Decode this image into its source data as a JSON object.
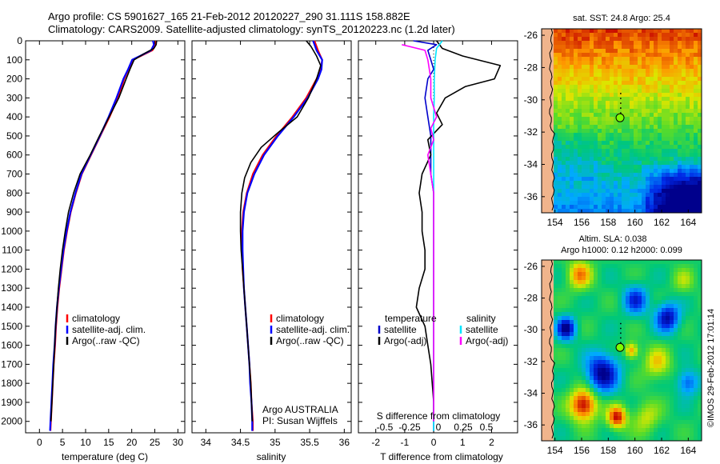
{
  "header": {
    "line1": "Argo profile: CS 5901627_165 21-Feb-2012 20120227_290 31.111S 158.882E",
    "line2": "Climatology: CARS2009. Satellite-adjusted climatology: synTS_20120223.nc (1.2d later)"
  },
  "colors": {
    "climatology": "#ff0000",
    "satellite": "#0000ff",
    "argo": "#000000",
    "temp_satellite_diff": "#0000cc",
    "sal_satellite_diff": "#00e5ff",
    "sal_argo_diff": "#ff00ff",
    "land": "#f0b48c"
  },
  "depth_axis": {
    "ticks": [
      "0",
      "100",
      "200",
      "300",
      "400",
      "500",
      "600",
      "700",
      "800",
      "900",
      "1000",
      "1100",
      "1200",
      "1300",
      "1400",
      "1500",
      "1600",
      "1700",
      "1800",
      "1900",
      "2000"
    ]
  },
  "temp_panel": {
    "xlabel": "temperature (deg C)",
    "xticks": [
      "0",
      "5",
      "10",
      "15",
      "20",
      "25",
      "30"
    ],
    "legend": [
      "climatology",
      "satellite-adj. clim.",
      "Argo(..raw -QC)"
    ]
  },
  "sal_panel": {
    "xlabel": "salinity",
    "xticks": [
      "34",
      "34.5",
      "35",
      "35.5",
      "36"
    ],
    "legend": [
      "climatology",
      "satellite-adj. clim.",
      "Argo(..raw -QC)"
    ],
    "note1": "Argo AUSTRALIA",
    "note2": "PI: Susan Wijffels"
  },
  "diff_panel": {
    "legend_temp_head": "temperature",
    "legend_sal_head": "salinity",
    "legend_temp_items": [
      "satellite",
      "Argo(-adj)"
    ],
    "legend_sal_items": [
      "satellite",
      "Argo(-adj)"
    ],
    "s_label": "S difference from climatology",
    "s_ticks": [
      "-0.5",
      "-0.25",
      "0",
      "0.25",
      "0.5"
    ],
    "t_ticks": [
      "-2",
      "-1",
      "0",
      "1",
      "2"
    ],
    "xlabel": "T difference from climatology"
  },
  "map_sst": {
    "title": "sat. SST: 24.8  Argo: 25.4",
    "xticks": [
      "154",
      "156",
      "158",
      "160",
      "162",
      "164"
    ],
    "yticks": [
      "-26",
      "-28",
      "-30",
      "-32",
      "-34",
      "-36"
    ]
  },
  "map_sla": {
    "title1": "Altim. SLA: 0.038",
    "title2": "Argo h1000: 0.12 h2000: 0.099",
    "xticks": [
      "154",
      "156",
      "158",
      "160",
      "162",
      "164"
    ],
    "yticks": [
      "-26",
      "-28",
      "-30",
      "-32",
      "-34",
      "-36"
    ]
  },
  "watermark": "©IMOS 29-Feb-2012 17:01:14",
  "chart_data": [
    {
      "type": "line",
      "xlabel": "temperature (deg C)",
      "ylabel": "",
      "xlim": [
        -3,
        31.5
      ],
      "ylim": [
        2060,
        0
      ],
      "series": [
        {
          "name": "climatology",
          "points": [
            [
              25.3,
              0
            ],
            [
              25.2,
              20
            ],
            [
              24.5,
              50
            ],
            [
              22,
              80
            ],
            [
              20.2,
              100
            ],
            [
              19.3,
              150
            ],
            [
              18.4,
              200
            ],
            [
              17,
              300
            ],
            [
              15.2,
              400
            ],
            [
              13.2,
              500
            ],
            [
              11.2,
              600
            ],
            [
              9.2,
              700
            ],
            [
              7.9,
              800
            ],
            [
              6.8,
              900
            ],
            [
              6,
              1000
            ],
            [
              5.3,
              1100
            ],
            [
              4.8,
              1200
            ],
            [
              4.3,
              1300
            ],
            [
              3.9,
              1400
            ],
            [
              3.6,
              1500
            ],
            [
              3.4,
              1600
            ],
            [
              3.1,
              1700
            ],
            [
              2.9,
              1800
            ],
            [
              2.7,
              1900
            ],
            [
              2.5,
              2000
            ],
            [
              2.4,
              2050
            ]
          ]
        },
        {
          "name": "satellite-adj. clim.",
          "points": [
            [
              24.6,
              0
            ],
            [
              24.8,
              20
            ],
            [
              24.2,
              50
            ],
            [
              21.8,
              80
            ],
            [
              20.1,
              100
            ],
            [
              19.2,
              150
            ],
            [
              18.2,
              200
            ],
            [
              16.7,
              300
            ],
            [
              15,
              400
            ],
            [
              13.1,
              500
            ],
            [
              11.1,
              600
            ],
            [
              9.1,
              700
            ],
            [
              7.8,
              800
            ],
            [
              6.7,
              900
            ],
            [
              5.9,
              1000
            ],
            [
              5.2,
              1100
            ],
            [
              4.7,
              1200
            ],
            [
              4.2,
              1300
            ],
            [
              3.8,
              1400
            ],
            [
              3.5,
              1500
            ],
            [
              3.3,
              1600
            ],
            [
              3,
              1700
            ],
            [
              2.8,
              1800
            ],
            [
              2.6,
              1900
            ],
            [
              2.4,
              2000
            ],
            [
              2.3,
              2050
            ]
          ]
        },
        {
          "name": "Argo(..raw -QC)",
          "points": [
            [
              25.4,
              0
            ],
            [
              25.3,
              20
            ],
            [
              24.8,
              40
            ],
            [
              22.5,
              70
            ],
            [
              20.5,
              100
            ],
            [
              19.6,
              150
            ],
            [
              18.8,
              200
            ],
            [
              17.2,
              300
            ],
            [
              15.1,
              400
            ],
            [
              13,
              500
            ],
            [
              11,
              600
            ],
            [
              8.8,
              700
            ],
            [
              7.4,
              800
            ],
            [
              6.3,
              900
            ],
            [
              5.6,
              1000
            ],
            [
              5,
              1100
            ],
            [
              4.5,
              1200
            ],
            [
              4.1,
              1300
            ],
            [
              3.8,
              1400
            ],
            [
              3.5,
              1500
            ],
            [
              3.3,
              1600
            ],
            [
              3.1,
              1700
            ],
            [
              2.9,
              1800
            ],
            [
              2.7,
              1900
            ],
            [
              2.5,
              2000
            ]
          ]
        }
      ]
    },
    {
      "type": "line",
      "xlabel": "salinity",
      "ylabel": "",
      "xlim": [
        33.8,
        36.1
      ],
      "ylim": [
        2060,
        0
      ],
      "series": [
        {
          "name": "climatology",
          "points": [
            [
              35.57,
              0
            ],
            [
              35.62,
              50
            ],
            [
              35.68,
              100
            ],
            [
              35.66,
              150
            ],
            [
              35.6,
              200
            ],
            [
              35.45,
              300
            ],
            [
              35.25,
              400
            ],
            [
              35.02,
              500
            ],
            [
              34.82,
              600
            ],
            [
              34.68,
              700
            ],
            [
              34.59,
              800
            ],
            [
              34.54,
              900
            ],
            [
              34.52,
              1000
            ],
            [
              34.52,
              1100
            ],
            [
              34.53,
              1200
            ],
            [
              34.55,
              1300
            ],
            [
              34.57,
              1400
            ],
            [
              34.59,
              1500
            ],
            [
              34.61,
              1600
            ],
            [
              34.63,
              1700
            ],
            [
              34.65,
              1800
            ],
            [
              34.66,
              1900
            ],
            [
              34.68,
              2000
            ],
            [
              34.68,
              2050
            ]
          ]
        },
        {
          "name": "satellite-adj. clim.",
          "points": [
            [
              35.55,
              0
            ],
            [
              35.6,
              50
            ],
            [
              35.68,
              100
            ],
            [
              35.67,
              150
            ],
            [
              35.62,
              200
            ],
            [
              35.47,
              300
            ],
            [
              35.27,
              400
            ],
            [
              35.04,
              500
            ],
            [
              34.84,
              600
            ],
            [
              34.7,
              700
            ],
            [
              34.6,
              800
            ],
            [
              34.55,
              900
            ],
            [
              34.53,
              1000
            ],
            [
              34.53,
              1100
            ],
            [
              34.54,
              1200
            ],
            [
              34.55,
              1300
            ],
            [
              34.57,
              1400
            ],
            [
              34.59,
              1500
            ],
            [
              34.61,
              1600
            ],
            [
              34.63,
              1700
            ],
            [
              34.64,
              1800
            ],
            [
              34.66,
              1900
            ],
            [
              34.67,
              2000
            ],
            [
              34.67,
              2050
            ]
          ]
        },
        {
          "name": "Argo(..raw -QC)",
          "points": [
            [
              35.45,
              0
            ],
            [
              35.52,
              30
            ],
            [
              35.6,
              80
            ],
            [
              35.66,
              130
            ],
            [
              35.6,
              200
            ],
            [
              35.48,
              300
            ],
            [
              35.32,
              400
            ],
            [
              35.05,
              480
            ],
            [
              34.8,
              560
            ],
            [
              34.65,
              640
            ],
            [
              34.56,
              720
            ],
            [
              34.52,
              800
            ],
            [
              34.5,
              900
            ],
            [
              34.5,
              1000
            ],
            [
              34.51,
              1100
            ],
            [
              34.53,
              1200
            ],
            [
              34.55,
              1300
            ],
            [
              34.57,
              1400
            ],
            [
              34.59,
              1500
            ],
            [
              34.61,
              1600
            ],
            [
              34.63,
              1700
            ],
            [
              34.65,
              1800
            ],
            [
              34.66,
              1900
            ],
            [
              34.67,
              2000
            ]
          ]
        }
      ]
    },
    {
      "type": "line",
      "xlabel": "T difference from climatology",
      "ylabel": "",
      "xlim": [
        -2.6,
        2.9
      ],
      "ylim": [
        2060,
        0
      ],
      "series": [
        {
          "name": "satellite",
          "points": [
            [
              -0.7,
              0
            ],
            [
              0.1,
              20
            ],
            [
              -0.2,
              50
            ],
            [
              -0.1,
              100
            ],
            [
              0,
              150
            ],
            [
              -0.2,
              200
            ],
            [
              -0.3,
              300
            ],
            [
              -0.2,
              400
            ],
            [
              -0.1,
              500
            ],
            [
              -0.1,
              600
            ],
            [
              -0.1,
              700
            ],
            [
              0,
              800
            ],
            [
              0,
              1000
            ],
            [
              0,
              1200
            ],
            [
              0,
              1400
            ],
            [
              0,
              1600
            ],
            [
              0,
              1800
            ],
            [
              0,
              2000
            ],
            [
              0,
              2050
            ]
          ]
        },
        {
          "name": "Argo(-adj)",
          "points": [
            [
              0.1,
              0
            ],
            [
              0.3,
              40
            ],
            [
              1,
              80
            ],
            [
              2.3,
              130
            ],
            [
              2.1,
              200
            ],
            [
              1.1,
              240
            ],
            [
              0.4,
              300
            ],
            [
              0.1,
              380
            ],
            [
              0.3,
              440
            ],
            [
              -0.2,
              520
            ],
            [
              -0.1,
              600
            ],
            [
              -0.4,
              700
            ],
            [
              -0.5,
              800
            ],
            [
              -0.4,
              900
            ],
            [
              -0.4,
              1000
            ],
            [
              -0.3,
              1100
            ],
            [
              -0.3,
              1200
            ],
            [
              -0.5,
              1300
            ],
            [
              -0.6,
              1400
            ],
            [
              -0.3,
              1500
            ],
            [
              -0.2,
              1600
            ],
            [
              -0.1,
              1700
            ],
            [
              -0.05,
              1800
            ],
            [
              0,
              1900
            ],
            [
              0,
              2000
            ]
          ]
        },
        {
          "name": "satellite",
          "points": [
            [
              0.3,
              0
            ],
            [
              0.1,
              40
            ],
            [
              0.05,
              100
            ],
            [
              0.02,
              200
            ],
            [
              0.02,
              300
            ],
            [
              0,
              400
            ],
            [
              0,
              500
            ],
            [
              0,
              700
            ],
            [
              0,
              1000
            ],
            [
              0,
              1500
            ],
            [
              0,
              2000
            ],
            [
              0,
              2050
            ]
          ]
        },
        {
          "name": "Argo(-adj)",
          "points": [
            [
              -1.1,
              20
            ],
            [
              -0.3,
              50
            ],
            [
              -0.2,
              100
            ],
            [
              -0.1,
              200
            ],
            [
              -0.1,
              300
            ],
            [
              0.1,
              400
            ],
            [
              -0.1,
              460
            ],
            [
              0,
              520
            ],
            [
              -0.2,
              600
            ],
            [
              -0.1,
              700
            ],
            [
              0,
              800
            ],
            [
              0,
              1000
            ],
            [
              0,
              1200
            ],
            [
              0,
              1500
            ],
            [
              0,
              2000
            ]
          ]
        }
      ]
    },
    {
      "type": "heatmap",
      "title": "sat. SST: 24.8  Argo: 25.4",
      "xlim": [
        153,
        165
      ],
      "ylim": [
        -37,
        -25.6
      ],
      "argo_position": [
        158.882,
        -31.111
      ]
    },
    {
      "type": "heatmap",
      "title": "Altim. SLA: 0.038",
      "xlim": [
        153,
        165
      ],
      "ylim": [
        -37,
        -25.6
      ],
      "argo_position": [
        158.882,
        -31.111
      ]
    }
  ]
}
